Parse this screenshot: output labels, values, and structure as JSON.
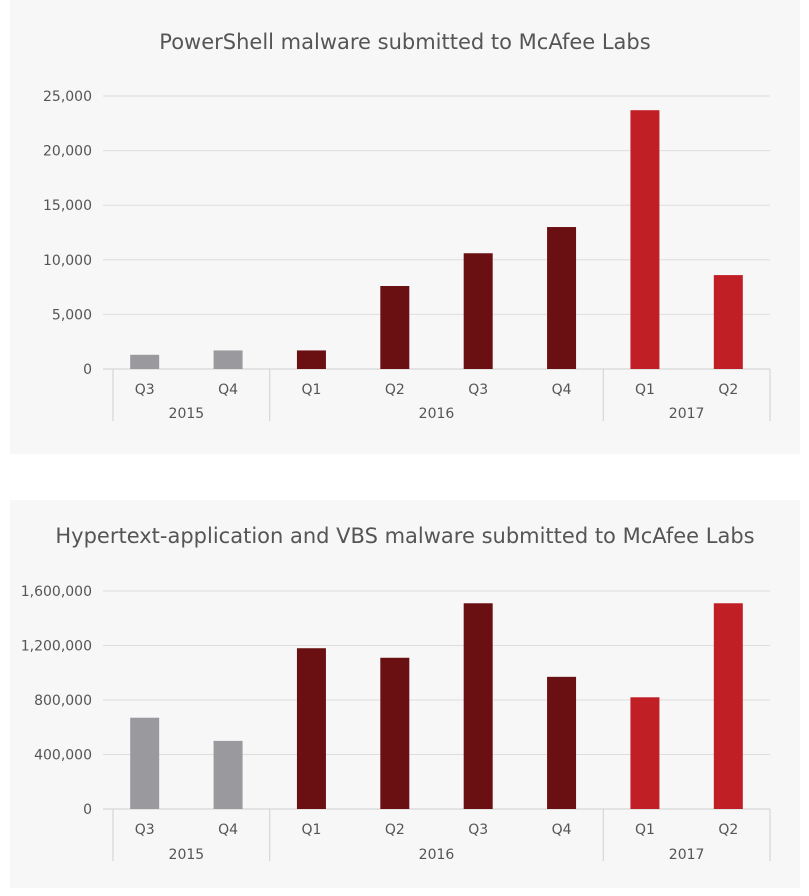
{
  "chart_data": [
    {
      "type": "bar",
      "title": "PowerShell malware submitted to McAfee Labs",
      "categories": [
        "Q3",
        "Q4",
        "Q1",
        "Q2",
        "Q3",
        "Q4",
        "Q1",
        "Q2"
      ],
      "groups": [
        {
          "label": "2015",
          "count": 2
        },
        {
          "label": "2016",
          "count": 4
        },
        {
          "label": "2017",
          "count": 2
        }
      ],
      "values": [
        1300,
        1700,
        1700,
        7600,
        10600,
        13000,
        23700,
        8600
      ],
      "colors": [
        "#9a9a9e",
        "#9a9a9e",
        "#6b1012",
        "#6b1012",
        "#6b1012",
        "#6b1012",
        "#c11f26",
        "#c11f26"
      ],
      "yticks": [
        "0",
        "5,000",
        "10,000",
        "15,000",
        "20,000",
        "25,000"
      ],
      "ylim": [
        0,
        25000
      ],
      "grid": true
    },
    {
      "type": "bar",
      "title": "Hypertext-application and VBS malware submitted to McAfee Labs",
      "categories": [
        "Q3",
        "Q4",
        "Q1",
        "Q2",
        "Q3",
        "Q4",
        "Q1",
        "Q2"
      ],
      "groups": [
        {
          "label": "2015",
          "count": 2
        },
        {
          "label": "2016",
          "count": 4
        },
        {
          "label": "2017",
          "count": 2
        }
      ],
      "values": [
        670000,
        500000,
        1180000,
        1110000,
        1510000,
        970000,
        820000,
        1510000
      ],
      "colors": [
        "#9a9a9e",
        "#9a9a9e",
        "#6b1012",
        "#6b1012",
        "#6b1012",
        "#6b1012",
        "#c11f26",
        "#c11f26"
      ],
      "yticks": [
        "0",
        "400,000",
        "800,000",
        "1,200,000",
        "1,600,000"
      ],
      "ylim": [
        0,
        1600000
      ],
      "grid": true
    }
  ]
}
